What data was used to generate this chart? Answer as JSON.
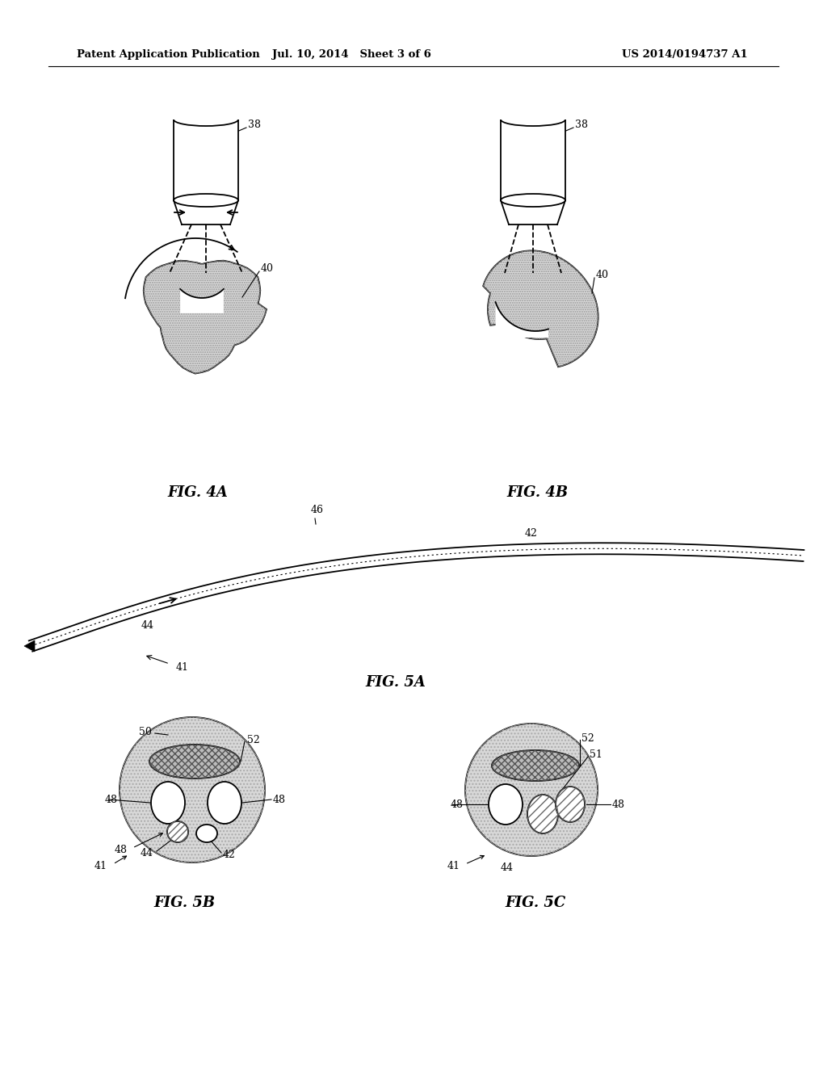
{
  "header_left": "Patent Application Publication",
  "header_mid": "Jul. 10, 2014   Sheet 3 of 6",
  "header_right": "US 2014/0194737 A1",
  "fig4a_label": "FIG. 4A",
  "fig4b_label": "FIG. 4B",
  "fig5a_label": "FIG. 5A",
  "fig5b_label": "FIG. 5B",
  "fig5c_label": "FIG. 5C",
  "bg_color": "#ffffff",
  "line_color": "#000000",
  "stone_fill": "#d8d8d8",
  "light_gray": "#e8e8e8"
}
